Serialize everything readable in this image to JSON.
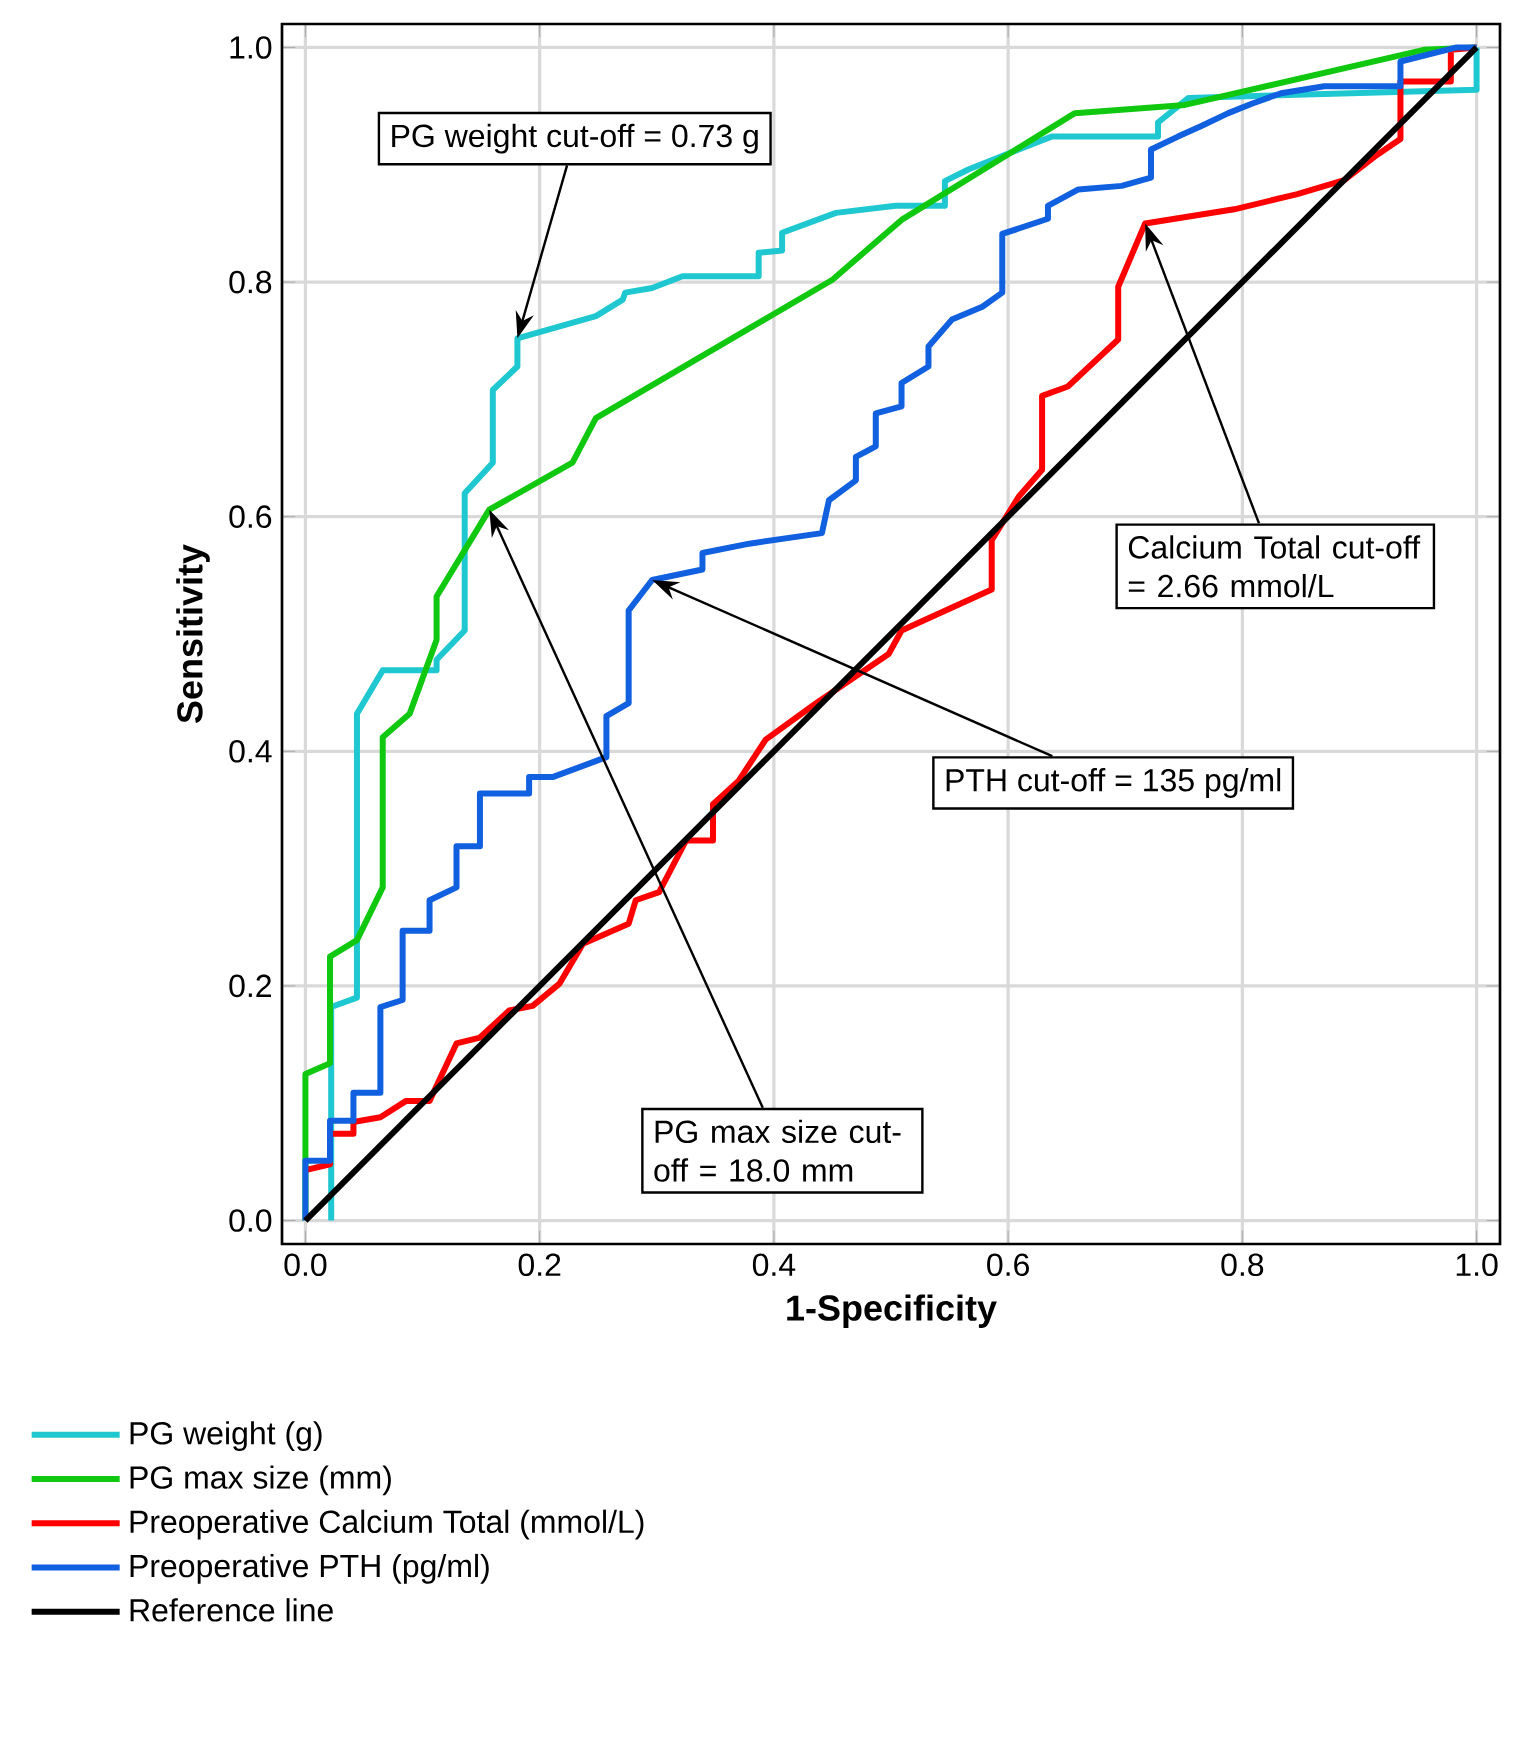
{
  "chart_data": {
    "type": "line",
    "xlabel": "1-Specificity",
    "ylabel": "Sensitivity",
    "xlim": [
      -0.02,
      1.02
    ],
    "ylim": [
      -0.02,
      1.02
    ],
    "xticks": [
      {
        "value": 0,
        "label": "0.0"
      },
      0.2,
      0.4,
      0.6,
      0.8,
      {
        "value": 1,
        "label": "1.0"
      }
    ],
    "yticks": [
      {
        "value": 0,
        "label": "0.0"
      },
      0.2,
      0.4,
      0.6,
      0.8,
      {
        "value": 1,
        "label": "1.0"
      }
    ],
    "grid": true,
    "legend": "bottom",
    "marker": "none",
    "line_style": "solid",
    "series": [
      {
        "name": "PG weight (g)",
        "color": "#1fc8d0",
        "x": [
          0.022,
          0.022,
          0.044,
          0.044,
          0.066,
          0.112,
          0.112,
          0.136,
          0.136,
          0.16,
          0.16,
          0.181,
          0.181,
          0.248,
          0.271,
          0.273,
          0.296,
          0.322,
          0.387,
          0.387,
          0.407,
          0.407,
          0.453,
          0.504,
          0.546,
          0.546,
          0.566,
          0.637,
          0.728,
          0.728,
          0.754,
          1.0,
          1.0
        ],
        "values": [
          0,
          0.182,
          0.19,
          0.432,
          0.469,
          0.469,
          0.478,
          0.503,
          0.62,
          0.646,
          0.708,
          0.728,
          0.752,
          0.771,
          0.785,
          0.791,
          0.795,
          0.805,
          0.805,
          0.825,
          0.827,
          0.842,
          0.859,
          0.865,
          0.865,
          0.886,
          0.896,
          0.924,
          0.924,
          0.936,
          0.957,
          0.964,
          1.0
        ]
      },
      {
        "name": "PG max size (mm)",
        "color": "#10c810",
        "x": [
          0,
          0,
          0.021,
          0.021,
          0.044,
          0.066,
          0.066,
          0.089,
          0.112,
          0.112,
          0.157,
          0.228,
          0.248,
          0.45,
          0.509,
          0.657,
          0.751,
          0.955,
          1.0
        ],
        "values": [
          0,
          0.125,
          0.134,
          0.225,
          0.239,
          0.284,
          0.412,
          0.432,
          0.495,
          0.532,
          0.606,
          0.646,
          0.684,
          0.802,
          0.853,
          0.944,
          0.951,
          0.998,
          1.0
        ]
      },
      {
        "name": "Preoperative Calcium Total (mmol/L)",
        "color": "#ff0000",
        "x": [
          0,
          0.021,
          0.021,
          0.041,
          0.041,
          0.064,
          0.086,
          0.106,
          0.129,
          0.149,
          0.174,
          0.194,
          0.217,
          0.237,
          0.276,
          0.282,
          0.302,
          0.325,
          0.348,
          0.348,
          0.37,
          0.393,
          0.436,
          0.498,
          0.509,
          0.586,
          0.586,
          0.609,
          0.629,
          0.629,
          0.651,
          0.694,
          0.694,
          0.717,
          0.793,
          0.847,
          0.887,
          0.913,
          0.935,
          0.935,
          0.978,
          0.978,
          1.0
        ],
        "values": [
          0.043,
          0.048,
          0.074,
          0.074,
          0.084,
          0.088,
          0.102,
          0.102,
          0.151,
          0.156,
          0.179,
          0.183,
          0.202,
          0.236,
          0.253,
          0.273,
          0.28,
          0.324,
          0.324,
          0.355,
          0.375,
          0.41,
          0.441,
          0.483,
          0.503,
          0.538,
          0.58,
          0.617,
          0.64,
          0.703,
          0.711,
          0.751,
          0.796,
          0.85,
          0.862,
          0.875,
          0.887,
          0.907,
          0.922,
          0.971,
          0.971,
          0.998,
          1.0
        ]
      },
      {
        "name": "Preoperative PTH (pg/ml)",
        "color": "#1060e0",
        "x": [
          0,
          0,
          0.021,
          0.021,
          0.041,
          0.041,
          0.064,
          0.064,
          0.083,
          0.083,
          0.106,
          0.106,
          0.129,
          0.129,
          0.149,
          0.149,
          0.191,
          0.191,
          0.211,
          0.257,
          0.257,
          0.276,
          0.276,
          0.296,
          0.339,
          0.339,
          0.379,
          0.441,
          0.447,
          0.47,
          0.47,
          0.487,
          0.487,
          0.509,
          0.509,
          0.532,
          0.532,
          0.552,
          0.578,
          0.595,
          0.595,
          0.634,
          0.634,
          0.66,
          0.697,
          0.722,
          0.722,
          0.745,
          0.765,
          0.788,
          0.808,
          0.833,
          0.87,
          0.935,
          0.935,
          0.983,
          1.0
        ],
        "values": [
          0,
          0.051,
          0.051,
          0.085,
          0.085,
          0.109,
          0.109,
          0.182,
          0.188,
          0.247,
          0.247,
          0.273,
          0.284,
          0.319,
          0.319,
          0.364,
          0.364,
          0.378,
          0.378,
          0.395,
          0.43,
          0.441,
          0.52,
          0.546,
          0.555,
          0.569,
          0.577,
          0.586,
          0.614,
          0.631,
          0.651,
          0.66,
          0.688,
          0.694,
          0.714,
          0.728,
          0.745,
          0.768,
          0.779,
          0.791,
          0.841,
          0.854,
          0.865,
          0.879,
          0.882,
          0.889,
          0.913,
          0.924,
          0.933,
          0.944,
          0.952,
          0.961,
          0.967,
          0.967,
          0.988,
          1.0,
          1.0
        ]
      },
      {
        "name": "Reference line",
        "color": "#000000",
        "x": [
          0,
          1
        ],
        "values": [
          0,
          1
        ]
      }
    ],
    "annotations": [
      {
        "text": "PG weight cut-off = 0.73 g",
        "x": 0.181,
        "y": 0.752
      },
      {
        "text": "Calcium Total cut-off = 2.66 mmol/L",
        "x": 0.717,
        "y": 0.85
      },
      {
        "text": "PTH cut-off = 135 pg/ml",
        "x": 0.296,
        "y": 0.546
      },
      {
        "text": "PG max size cut-off = 18.0 mm",
        "x": 0.157,
        "y": 0.606
      }
    ]
  }
}
